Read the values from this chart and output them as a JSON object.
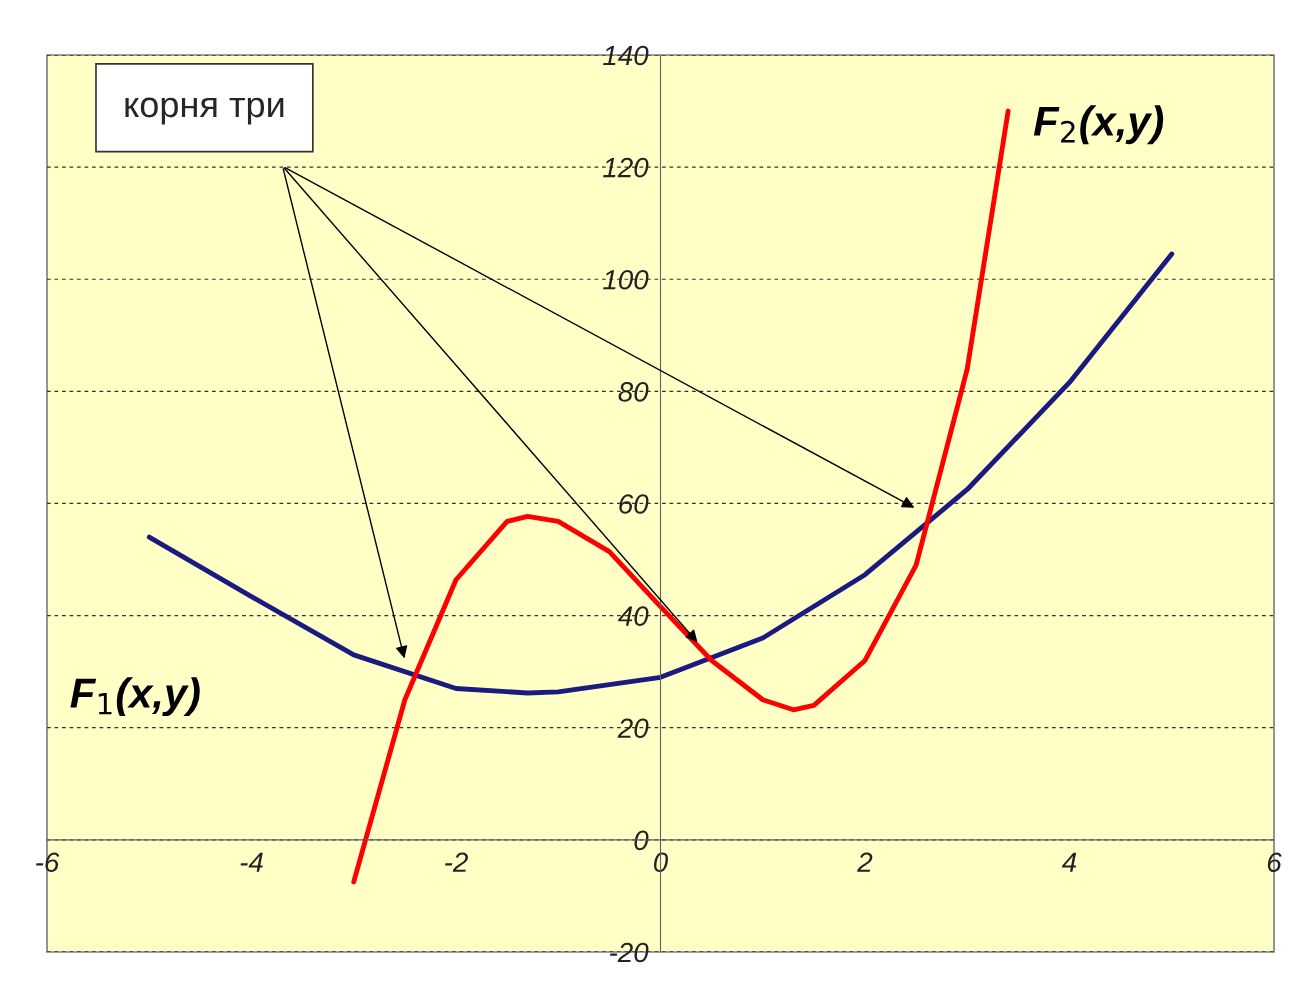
{
  "chart_data": {
    "type": "line",
    "series": [
      {
        "name": "F$_{1}$(x,y)",
        "color": "#1a1a80",
        "x": [
          -5,
          -4,
          -3,
          -2,
          -1.3,
          -1,
          0,
          1,
          2,
          3,
          4,
          5
        ],
        "values": [
          54,
          43.4,
          33,
          27,
          26.2,
          26.4,
          29,
          36,
          47.3,
          62.5,
          81.6,
          104.5
        ]
      },
      {
        "name": "F$_{2}$(x,y)",
        "color": "#ff0000",
        "x": [
          -3,
          -2.5,
          -2,
          -1.5,
          -1.3,
          -1,
          -0.5,
          0,
          0.5,
          1,
          1.3,
          1.5,
          2,
          2.5,
          3,
          3.4
        ],
        "values": [
          -7.5,
          25,
          46.4,
          56.8,
          57.7,
          56.8,
          51.4,
          41.6,
          32,
          25,
          23.2,
          24,
          32,
          49,
          84,
          130
        ]
      }
    ],
    "annotations": [
      "корня три"
    ],
    "xlim": [
      -6,
      6
    ],
    "xticks": [
      -6,
      -4,
      -2,
      0,
      2,
      4,
      6
    ],
    "ylim": [
      -20,
      140
    ],
    "yticks": [
      -20,
      0,
      20,
      40,
      60,
      80,
      100,
      120,
      140
    ],
    "grid": "y",
    "marker": "none",
    "line_style": "solid",
    "legend": false
  }
}
